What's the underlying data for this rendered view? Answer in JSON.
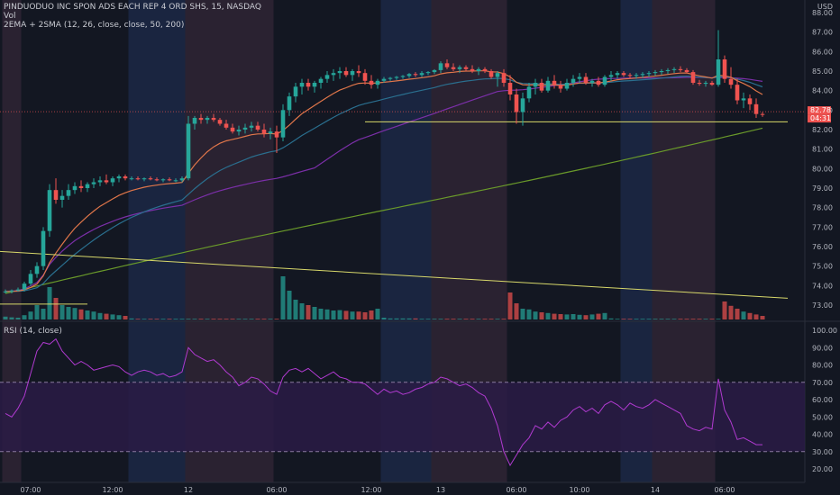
{
  "header": {
    "symbol_line": "PINDUODUO INC SPON ADS EACH REP 4 ORD SHS, 15, NASDAQ",
    "volume_label": "Vol",
    "ma_label": "2EMA + 2SMA (12, 26, close, close, 50, 200)",
    "currency": "USD"
  },
  "rsi_header": {
    "label": "RSI (14, close)"
  },
  "price_tags": {
    "last": "82.78",
    "countdown": "04:31"
  },
  "colors": {
    "background": "#131722",
    "up": "#26a69a",
    "down": "#ef5350",
    "ema12": "#e0764a",
    "ema26": "#2a6f8f",
    "sma50": "#7b2fa8",
    "sma200": "#6a9a2a",
    "trendline": "#d8d86a",
    "rsi": "#b03ad0",
    "rsi_band": "#2a1b45",
    "session_pre": "#2a2231",
    "session_post": "#1a2540"
  },
  "chart_data": [
    {
      "type": "candlestick",
      "title": "PINDUODUO INC SPON ADS EACH REP 4 ORD SHS, 15, NASDAQ",
      "ylim": [
        72.6,
        88.2
      ],
      "y_ticks": [
        "88.00",
        "87.00",
        "86.00",
        "85.00",
        "84.00",
        "83.00",
        "82.00",
        "81.00",
        "80.00",
        "79.00",
        "78.00",
        "77.00",
        "76.00",
        "75.00",
        "74.00",
        "73.00"
      ],
      "x_ticks": [
        {
          "label": "07:00",
          "index": 4
        },
        {
          "label": "12:00",
          "index": 17
        },
        {
          "label": "12",
          "index": 29
        },
        {
          "label": "06:00",
          "index": 43
        },
        {
          "label": "12:00",
          "index": 58
        },
        {
          "label": "13",
          "index": 69
        },
        {
          "label": "06:00",
          "index": 81
        },
        {
          "label": "10:00",
          "index": 91
        },
        {
          "label": "14",
          "index": 103
        },
        {
          "label": "06:00",
          "index": 114
        }
      ],
      "sessions": [
        {
          "type": "pre",
          "start": 0,
          "end": 3
        },
        {
          "type": "post",
          "start": 20,
          "end": 29
        },
        {
          "type": "pre",
          "start": 29,
          "end": 43
        },
        {
          "type": "post",
          "start": 60,
          "end": 68
        },
        {
          "type": "pre",
          "start": 68,
          "end": 80
        },
        {
          "type": "post",
          "start": 98,
          "end": 103
        },
        {
          "type": "pre",
          "start": 103,
          "end": 113
        }
      ],
      "candles": [
        [
          73.7,
          73.8,
          73.6,
          73.7
        ],
        [
          73.7,
          73.8,
          73.6,
          73.75
        ],
        [
          73.75,
          73.9,
          73.7,
          73.8
        ],
        [
          73.8,
          74.2,
          73.7,
          74.1
        ],
        [
          74.1,
          74.8,
          74.0,
          74.6
        ],
        [
          74.6,
          75.2,
          74.4,
          75.0
        ],
        [
          75.0,
          77.0,
          74.8,
          76.8
        ],
        [
          76.8,
          79.2,
          76.5,
          78.9
        ],
        [
          78.9,
          79.5,
          78.2,
          78.4
        ],
        [
          78.4,
          78.9,
          78.0,
          78.6
        ],
        [
          78.6,
          79.2,
          78.4,
          78.9
        ],
        [
          78.9,
          79.3,
          78.7,
          79.1
        ],
        [
          79.1,
          79.4,
          78.8,
          79.0
        ],
        [
          79.0,
          79.3,
          78.8,
          79.2
        ],
        [
          79.2,
          79.5,
          79.0,
          79.3
        ],
        [
          79.3,
          79.6,
          79.1,
          79.4
        ],
        [
          79.4,
          79.7,
          79.2,
          79.3
        ],
        [
          79.3,
          79.6,
          79.1,
          79.5
        ],
        [
          79.5,
          79.7,
          79.3,
          79.6
        ],
        [
          79.6,
          79.7,
          79.4,
          79.5
        ],
        [
          79.5,
          79.6,
          79.4,
          79.5
        ],
        [
          79.5,
          79.6,
          79.4,
          79.45
        ],
        [
          79.45,
          79.55,
          79.35,
          79.5
        ],
        [
          79.5,
          79.6,
          79.4,
          79.45
        ],
        [
          79.45,
          79.55,
          79.35,
          79.4
        ],
        [
          79.4,
          79.5,
          79.3,
          79.45
        ],
        [
          79.45,
          79.55,
          79.35,
          79.4
        ],
        [
          79.4,
          79.5,
          79.3,
          79.4
        ],
        [
          79.4,
          79.6,
          79.3,
          79.5
        ],
        [
          79.5,
          82.7,
          79.4,
          82.3
        ],
        [
          82.3,
          82.7,
          82.0,
          82.6
        ],
        [
          82.6,
          82.8,
          82.3,
          82.5
        ],
        [
          82.5,
          82.7,
          82.3,
          82.6
        ],
        [
          82.6,
          82.8,
          82.4,
          82.5
        ],
        [
          82.5,
          82.6,
          82.2,
          82.3
        ],
        [
          82.3,
          82.5,
          82.0,
          82.1
        ],
        [
          82.1,
          82.3,
          81.8,
          81.9
        ],
        [
          81.9,
          82.2,
          81.7,
          82.0
        ],
        [
          82.0,
          82.3,
          81.8,
          82.1
        ],
        [
          82.1,
          82.4,
          81.9,
          82.2
        ],
        [
          82.2,
          82.4,
          81.9,
          82.0
        ],
        [
          82.0,
          82.3,
          81.6,
          81.8
        ],
        [
          81.8,
          82.1,
          81.5,
          81.9
        ],
        [
          81.9,
          82.2,
          80.8,
          81.6
        ],
        [
          81.6,
          83.3,
          81.4,
          83.0
        ],
        [
          83.0,
          83.9,
          82.7,
          83.7
        ],
        [
          83.7,
          84.4,
          83.4,
          84.2
        ],
        [
          84.2,
          84.6,
          83.8,
          84.4
        ],
        [
          84.4,
          84.6,
          84.0,
          84.2
        ],
        [
          84.2,
          84.5,
          83.9,
          84.4
        ],
        [
          84.4,
          84.7,
          84.1,
          84.6
        ],
        [
          84.6,
          85.0,
          84.4,
          84.8
        ],
        [
          84.8,
          85.1,
          84.5,
          84.9
        ],
        [
          84.9,
          85.2,
          84.6,
          85.0
        ],
        [
          85.0,
          85.2,
          84.7,
          84.8
        ],
        [
          84.8,
          85.1,
          84.5,
          85.0
        ],
        [
          85.0,
          85.3,
          84.7,
          84.9
        ],
        [
          84.9,
          85.1,
          84.3,
          84.5
        ],
        [
          84.5,
          84.8,
          84.1,
          84.3
        ],
        [
          84.3,
          84.6,
          84.1,
          84.5
        ],
        [
          84.5,
          84.7,
          84.4,
          84.6
        ],
        [
          84.6,
          84.7,
          84.5,
          84.65
        ],
        [
          84.65,
          84.75,
          84.55,
          84.7
        ],
        [
          84.7,
          84.8,
          84.6,
          84.75
        ],
        [
          84.75,
          84.9,
          84.65,
          84.85
        ],
        [
          84.85,
          84.95,
          84.7,
          84.8
        ],
        [
          84.8,
          85.0,
          84.7,
          84.9
        ],
        [
          84.9,
          85.0,
          84.8,
          84.95
        ],
        [
          84.95,
          85.1,
          84.85,
          85.05
        ],
        [
          85.05,
          85.5,
          84.9,
          85.4
        ],
        [
          85.4,
          85.6,
          85.1,
          85.2
        ],
        [
          85.2,
          85.4,
          85.0,
          85.1
        ],
        [
          85.1,
          85.3,
          84.9,
          85.2
        ],
        [
          85.2,
          85.3,
          85.0,
          85.1
        ],
        [
          85.1,
          85.3,
          84.9,
          85.0
        ],
        [
          85.0,
          85.2,
          84.8,
          85.1
        ],
        [
          85.1,
          85.2,
          84.9,
          85.0
        ],
        [
          85.0,
          85.1,
          84.6,
          84.7
        ],
        [
          84.7,
          85.0,
          84.2,
          84.9
        ],
        [
          84.9,
          85.1,
          84.2,
          84.4
        ],
        [
          84.4,
          84.8,
          83.5,
          83.8
        ],
        [
          83.8,
          84.1,
          82.3,
          82.9
        ],
        [
          82.9,
          83.9,
          82.2,
          83.6
        ],
        [
          83.6,
          84.4,
          83.4,
          84.2
        ],
        [
          84.2,
          84.6,
          83.8,
          84.4
        ],
        [
          84.4,
          84.6,
          83.9,
          84.0
        ],
        [
          84.0,
          84.7,
          83.9,
          84.5
        ],
        [
          84.5,
          84.8,
          84.1,
          84.3
        ],
        [
          84.3,
          84.5,
          83.9,
          84.1
        ],
        [
          84.1,
          84.6,
          84.0,
          84.4
        ],
        [
          84.4,
          84.8,
          84.2,
          84.6
        ],
        [
          84.6,
          84.9,
          84.4,
          84.7
        ],
        [
          84.7,
          84.9,
          84.3,
          84.4
        ],
        [
          84.4,
          84.6,
          84.2,
          84.5
        ],
        [
          84.5,
          84.7,
          84.2,
          84.3
        ],
        [
          84.3,
          84.8,
          84.2,
          84.7
        ],
        [
          84.7,
          85.0,
          84.5,
          84.8
        ],
        [
          84.8,
          85.0,
          84.6,
          84.9
        ],
        [
          84.9,
          85.0,
          84.7,
          84.8
        ],
        [
          84.8,
          84.9,
          84.6,
          84.75
        ],
        [
          84.75,
          84.9,
          84.6,
          84.8
        ],
        [
          84.8,
          84.95,
          84.65,
          84.85
        ],
        [
          84.85,
          85.0,
          84.7,
          84.9
        ],
        [
          84.9,
          85.05,
          84.75,
          84.95
        ],
        [
          84.95,
          85.1,
          84.8,
          85.0
        ],
        [
          85.0,
          85.15,
          84.85,
          85.05
        ],
        [
          85.05,
          85.2,
          84.9,
          85.1
        ],
        [
          85.1,
          85.25,
          84.95,
          85.05
        ],
        [
          85.05,
          85.15,
          84.9,
          84.95
        ],
        [
          84.95,
          85.05,
          84.3,
          84.4
        ],
        [
          84.4,
          84.55,
          84.25,
          84.35
        ],
        [
          84.35,
          84.5,
          84.2,
          84.4
        ],
        [
          84.4,
          84.5,
          84.25,
          84.3
        ],
        [
          84.3,
          87.1,
          84.2,
          85.6
        ],
        [
          85.6,
          85.8,
          84.4,
          84.6
        ],
        [
          84.6,
          85.2,
          84.1,
          84.3
        ],
        [
          84.3,
          84.6,
          83.3,
          83.5
        ],
        [
          83.5,
          83.9,
          83.1,
          83.6
        ],
        [
          83.6,
          83.8,
          83.0,
          83.3
        ],
        [
          83.3,
          83.6,
          82.6,
          82.8
        ],
        [
          82.8,
          82.9,
          82.65,
          82.78
        ]
      ],
      "volume": [
        8,
        6,
        5,
        12,
        22,
        40,
        30,
        90,
        60,
        40,
        35,
        32,
        28,
        25,
        22,
        18,
        16,
        14,
        12,
        10,
        3,
        2,
        2,
        2,
        2,
        2,
        2,
        2,
        2,
        2,
        2,
        2,
        2,
        2,
        2,
        2,
        2,
        2,
        2,
        2,
        2,
        2,
        2,
        2,
        120,
        80,
        55,
        45,
        40,
        35,
        30,
        28,
        25,
        26,
        24,
        22,
        22,
        20,
        25,
        30,
        5,
        3,
        3,
        3,
        3,
        3,
        2,
        2,
        2,
        2,
        2,
        2,
        2,
        2,
        2,
        2,
        2,
        2,
        2,
        2,
        75,
        45,
        30,
        28,
        22,
        20,
        18,
        16,
        15,
        14,
        15,
        13,
        12,
        14,
        16,
        18,
        3,
        2,
        2,
        2,
        2,
        2,
        2,
        2,
        2,
        2,
        2,
        2,
        2,
        2,
        2,
        2,
        2,
        2,
        50,
        38,
        30,
        22,
        18,
        14,
        10
      ],
      "horizontal_lines": [
        {
          "price": 82.4,
          "from": 57,
          "to": 124
        }
      ],
      "trendlines": [
        {
          "from": [
            -6,
            75.85
          ],
          "to": [
            124,
            73.35
          ]
        },
        {
          "from": [
            -6,
            73.05
          ],
          "to": [
            13,
            73.05
          ]
        }
      ]
    },
    {
      "type": "line",
      "title": "RSI (14, close)",
      "ylim": [
        13,
        105
      ],
      "y_ticks": [
        "100.00",
        "90.00",
        "80.00",
        "70.00",
        "60.00",
        "50.00",
        "40.00",
        "30.00",
        "20.00"
      ],
      "band": [
        30,
        70
      ],
      "values": [
        52,
        50,
        55,
        62,
        75,
        88,
        93,
        92,
        95,
        88,
        84,
        80,
        82,
        80,
        77,
        78,
        79,
        80,
        79,
        76,
        74,
        76,
        77,
        76,
        74,
        75,
        73,
        74,
        76,
        90,
        86,
        84,
        82,
        83,
        80,
        76,
        73,
        68,
        70,
        73,
        72,
        69,
        65,
        63,
        73,
        77,
        78,
        76,
        78,
        75,
        72,
        74,
        76,
        73,
        72,
        70,
        70,
        69,
        66,
        63,
        66,
        64,
        65,
        63,
        64,
        66,
        67,
        69,
        70,
        73,
        72,
        70,
        68,
        69,
        67,
        64,
        62,
        55,
        45,
        30,
        22,
        28,
        34,
        38,
        45,
        43,
        47,
        44,
        48,
        50,
        54,
        56,
        53,
        55,
        52,
        57,
        59,
        57,
        54,
        58,
        56,
        55,
        57,
        60,
        58,
        56,
        54,
        52,
        45,
        43,
        42,
        44,
        43,
        72,
        54,
        47,
        37,
        38,
        36,
        34,
        34
      ]
    }
  ]
}
